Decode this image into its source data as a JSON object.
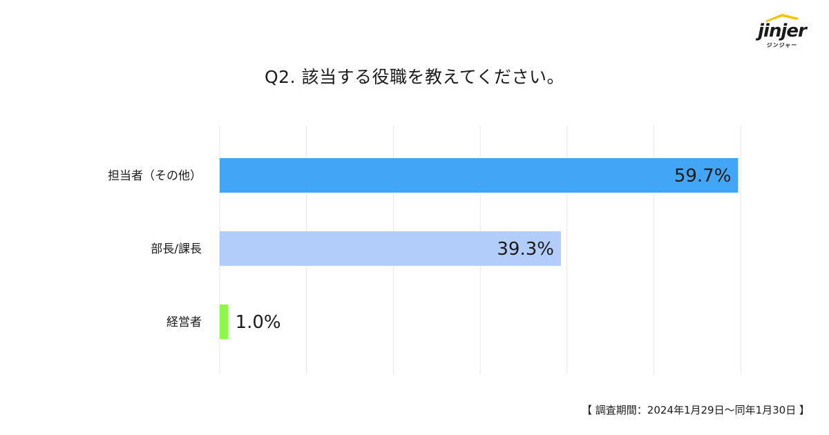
{
  "brand": {
    "logo_text": "jinjer",
    "logo_sub": "ジンジャー",
    "accent": "#F5C400"
  },
  "footer": {
    "survey_period": "【 調査期間：2024年1月29日〜同年1月30日 】"
  },
  "chart_data": {
    "type": "bar",
    "orientation": "horizontal",
    "title": "Q2. 該当する役職を教えてください。",
    "categories": [
      "担当者（その他）",
      "部長/課長",
      "経営者"
    ],
    "values": [
      59.7,
      39.3,
      1.0
    ],
    "value_labels": [
      "59.7%",
      "39.3%",
      "1.0%"
    ],
    "colors": [
      "#42A5F5",
      "#B3CDFB",
      "#8FF74A"
    ],
    "xlim": [
      0,
      60
    ],
    "grid": true,
    "legend": "none"
  }
}
